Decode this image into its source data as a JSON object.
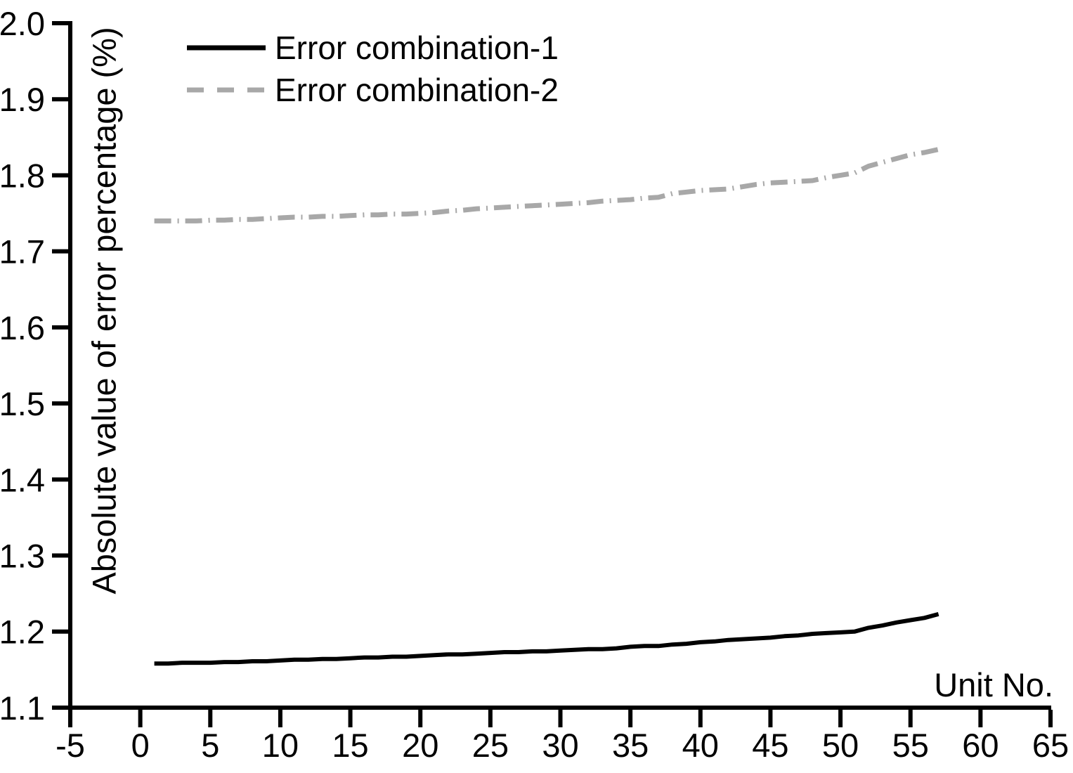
{
  "figure": {
    "background_color": "#ffffff",
    "axis_color": "#000000"
  },
  "legend": {
    "items": [
      {
        "label": "Error combination-1",
        "color": "#000000",
        "style": "solid"
      },
      {
        "label": "Error combination-2",
        "color": "#a8a8a8",
        "style": "dashed"
      }
    ]
  },
  "chart_data": {
    "type": "line",
    "title": "",
    "xlabel": "Unit No.",
    "ylabel": "Absolute value of error percentage (%)",
    "xlim": [
      -5,
      65
    ],
    "ylim": [
      1.1,
      2.0
    ],
    "x_ticks": [
      -5,
      0,
      5,
      10,
      15,
      20,
      25,
      30,
      35,
      40,
      45,
      50,
      55,
      60,
      65
    ],
    "y_ticks": [
      1.1,
      1.2,
      1.3,
      1.4,
      1.5,
      1.6,
      1.7,
      1.8,
      1.9,
      2.0
    ],
    "grid": false,
    "legend_position": "top-left-inside",
    "x": [
      1,
      2,
      3,
      4,
      5,
      6,
      7,
      8,
      9,
      10,
      11,
      12,
      13,
      14,
      15,
      16,
      17,
      18,
      19,
      20,
      21,
      22,
      23,
      24,
      25,
      26,
      27,
      28,
      29,
      30,
      31,
      32,
      33,
      34,
      35,
      36,
      37,
      38,
      39,
      40,
      41,
      42,
      43,
      44,
      45,
      46,
      47,
      48,
      49,
      50,
      51,
      52,
      53,
      54,
      55,
      56,
      57
    ],
    "series": [
      {
        "name": "Error combination-1",
        "color": "#000000",
        "line_style": "solid",
        "line_width": 6,
        "values": [
          1.158,
          1.158,
          1.159,
          1.159,
          1.159,
          1.16,
          1.16,
          1.161,
          1.161,
          1.162,
          1.163,
          1.163,
          1.164,
          1.164,
          1.165,
          1.166,
          1.166,
          1.167,
          1.167,
          1.168,
          1.169,
          1.17,
          1.17,
          1.171,
          1.172,
          1.173,
          1.173,
          1.174,
          1.174,
          1.175,
          1.176,
          1.177,
          1.177,
          1.178,
          1.18,
          1.181,
          1.181,
          1.183,
          1.184,
          1.186,
          1.187,
          1.189,
          1.19,
          1.191,
          1.192,
          1.194,
          1.195,
          1.197,
          1.198,
          1.199,
          1.2,
          1.205,
          1.208,
          1.212,
          1.215,
          1.218,
          1.223
        ]
      },
      {
        "name": "Error combination-2",
        "color": "#a8a8a8",
        "line_style": "dash-dot",
        "line_width": 7,
        "values": [
          1.74,
          1.74,
          1.74,
          1.74,
          1.741,
          1.741,
          1.742,
          1.742,
          1.743,
          1.744,
          1.745,
          1.745,
          1.746,
          1.746,
          1.747,
          1.748,
          1.748,
          1.749,
          1.749,
          1.75,
          1.751,
          1.753,
          1.754,
          1.756,
          1.757,
          1.758,
          1.759,
          1.76,
          1.761,
          1.762,
          1.763,
          1.764,
          1.766,
          1.767,
          1.768,
          1.77,
          1.771,
          1.776,
          1.778,
          1.78,
          1.781,
          1.782,
          1.785,
          1.788,
          1.79,
          1.791,
          1.792,
          1.793,
          1.797,
          1.8,
          1.803,
          1.812,
          1.817,
          1.822,
          1.827,
          1.83,
          1.834
        ]
      }
    ]
  }
}
